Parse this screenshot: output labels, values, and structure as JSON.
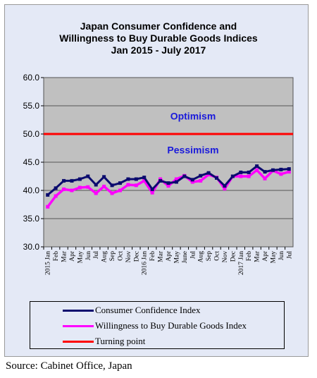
{
  "title": {
    "line1": "Japan Consumer Confidence and",
    "line2": "Willingness to Buy Durable Goods Indices",
    "line3": "Jan 2015 - July 2017"
  },
  "source": "Source:  Cabinet Office, Japan",
  "chart_data": {
    "type": "line",
    "ylim": [
      30,
      60
    ],
    "y_ticks": [
      "60.0",
      "55.0",
      "50.0",
      "45.0",
      "40.0",
      "35.0",
      "30.0"
    ],
    "y_tick_values": [
      60,
      55,
      50,
      45,
      40,
      35,
      30
    ],
    "grid": "horizontal",
    "categories": [
      "2015 Jan",
      "Feb",
      "Mar",
      "Apr",
      "May",
      "Jun",
      "Jul",
      "Aug",
      "Sep",
      "Oct",
      "Nov",
      "Dec",
      "2016 Jan",
      "Feb",
      "Mar",
      "Apr",
      "May",
      "June",
      "Jul",
      "Aug",
      "Sep",
      "Oct",
      "Nov",
      "Dec",
      "2017 Jan",
      "Feb",
      "Mar",
      "Apr",
      "May",
      "Jun",
      "Jul"
    ],
    "annotations": [
      {
        "text": "Optimism",
        "y": 53.2,
        "color": "#1a1adb"
      },
      {
        "text": "Pessimism",
        "y": 47.2,
        "color": "#1a1adb"
      }
    ],
    "series": [
      {
        "name": "Consumer Confidence Index",
        "color": "#0b0b6e",
        "values": [
          39.2,
          40.4,
          41.7,
          41.7,
          42.0,
          42.5,
          41.0,
          42.4,
          40.9,
          41.3,
          42.0,
          42.0,
          42.3,
          40.2,
          41.7,
          41.3,
          41.5,
          42.5,
          41.9,
          42.6,
          43.1,
          42.2,
          40.8,
          42.5,
          43.2,
          43.2,
          44.3,
          43.3,
          43.6,
          43.7,
          43.8
        ]
      },
      {
        "name": "Willingness to Buy Durable Goods Index",
        "color": "#ff00ff",
        "values": [
          37.1,
          39.0,
          40.2,
          40.0,
          40.5,
          40.6,
          39.5,
          40.7,
          39.5,
          40.0,
          41.0,
          40.9,
          41.7,
          39.6,
          42.0,
          40.8,
          42.0,
          42.6,
          41.5,
          41.7,
          42.8,
          42.3,
          40.3,
          42.5,
          42.5,
          42.5,
          43.6,
          42.1,
          43.5,
          42.9,
          43.3
        ]
      },
      {
        "name": "Turning point",
        "color": "#ff0000",
        "constant": 50
      }
    ],
    "legend_position": "bottom"
  }
}
